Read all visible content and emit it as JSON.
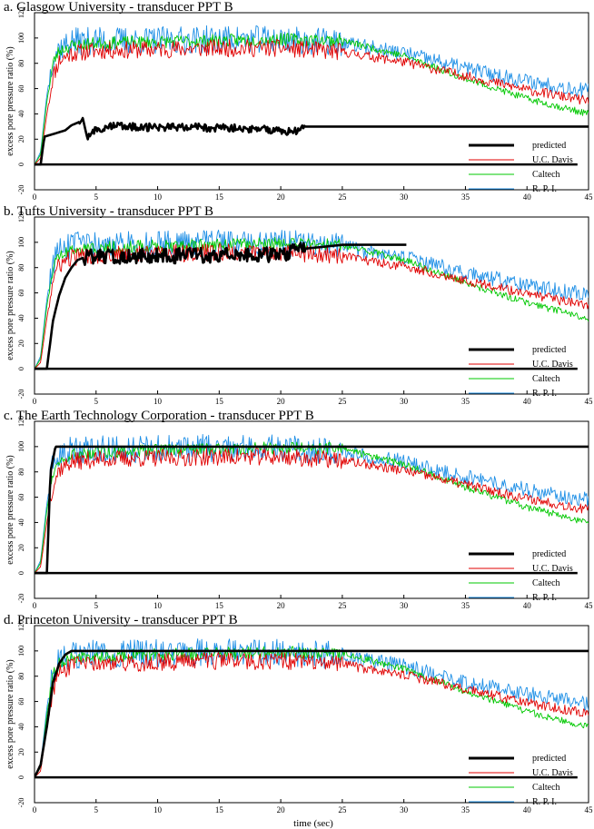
{
  "figure": {
    "xlabel": "time (sec)",
    "ylabel": "excess pore pressure ratio  (%)"
  },
  "colors": {
    "predicted": "#000000",
    "uc_davis": "#e00000",
    "caltech": "#00c800",
    "rpi": "#1e8fe6"
  },
  "chart_data": [
    {
      "type": "line",
      "title": "a. Glasgow University - transducer PPT B",
      "xlabel": "time (sec)",
      "ylabel": "excess pore pressure ratio  (%)",
      "xlim": [
        0,
        45
      ],
      "ylim": [
        -20,
        120
      ],
      "xticks": [
        0,
        5,
        10,
        15,
        20,
        25,
        30,
        35,
        40,
        45
      ],
      "yticks": [
        -20,
        0,
        20,
        40,
        60,
        80,
        100,
        120
      ],
      "legend": "bottom-right",
      "legend_entries": [
        "predicted",
        "U.C. Davis",
        "Caltech",
        "R. P. I."
      ],
      "series": [
        {
          "name": "predicted",
          "color": "#000000",
          "x": [
            0,
            0.5,
            0.8,
            1.5,
            2.5,
            3.0,
            3.5,
            4.0,
            4.2,
            5,
            6,
            8,
            10,
            12,
            14,
            16,
            18,
            20,
            21,
            21.5,
            22,
            30,
            35,
            45
          ],
          "y": [
            0,
            0,
            22,
            24,
            27,
            31,
            33,
            36,
            22,
            27,
            30,
            30,
            29,
            30,
            29,
            29,
            28,
            27,
            26,
            27,
            30,
            30,
            30,
            30
          ]
        },
        {
          "name": "U.C. Davis",
          "color": "#e00000",
          "x": [
            0,
            0.5,
            1,
            1.5,
            2,
            3,
            5,
            10,
            15,
            20,
            25,
            30,
            35,
            40,
            45
          ],
          "y": [
            0,
            5,
            40,
            70,
            82,
            88,
            90,
            91,
            92,
            92,
            89,
            81,
            70,
            59,
            50
          ]
        },
        {
          "name": "Caltech",
          "color": "#00c800",
          "x": [
            0,
            0.5,
            1,
            1.5,
            2,
            3,
            5,
            10,
            15,
            20,
            25,
            30,
            35,
            40,
            45
          ],
          "y": [
            0,
            8,
            50,
            80,
            90,
            94,
            96,
            97,
            98,
            99,
            98,
            86,
            68,
            52,
            40
          ]
        },
        {
          "name": "R. P. I.",
          "color": "#1e8fe6",
          "x": [
            0,
            0.5,
            1,
            1.5,
            2,
            3,
            5,
            10,
            15,
            20,
            25,
            30,
            35,
            40,
            45
          ],
          "y": [
            0,
            10,
            55,
            85,
            92,
            97,
            98,
            98,
            99,
            99,
            96,
            88,
            76,
            66,
            58
          ]
        }
      ]
    },
    {
      "type": "line",
      "title": "b. Tufts University - transducer PPT B",
      "xlabel": "time (sec)",
      "ylabel": "excess pore pressure ratio  (%)",
      "xlim": [
        0,
        45
      ],
      "ylim": [
        -20,
        120
      ],
      "xticks": [
        0,
        5,
        10,
        15,
        20,
        25,
        30,
        35,
        40,
        45
      ],
      "yticks": [
        -20,
        0,
        20,
        40,
        60,
        80,
        100,
        120
      ],
      "legend": "bottom-right",
      "legend_entries": [
        "predicted",
        "U.C. Davis",
        "Caltech",
        "R. P. I."
      ],
      "series": [
        {
          "name": "predicted",
          "color": "#000000",
          "x": [
            0,
            1.0,
            1.2,
            1.5,
            2.0,
            2.5,
            3.0,
            3.5,
            4.0,
            5,
            10,
            15,
            20,
            22,
            25,
            30.2
          ],
          "y": [
            0,
            0,
            15,
            38,
            58,
            72,
            80,
            86,
            88,
            89,
            89,
            90,
            90,
            95,
            98,
            98
          ]
        },
        {
          "name": "U.C. Davis",
          "color": "#e00000",
          "x": [
            0,
            0.5,
            1,
            1.5,
            2,
            3,
            5,
            10,
            15,
            20,
            25,
            30,
            35,
            40,
            45
          ],
          "y": [
            0,
            5,
            40,
            70,
            82,
            88,
            90,
            91,
            92,
            92,
            89,
            81,
            70,
            59,
            50
          ]
        },
        {
          "name": "Caltech",
          "color": "#00c800",
          "x": [
            0,
            0.5,
            1,
            1.5,
            2,
            3,
            5,
            10,
            15,
            20,
            25,
            30,
            35,
            40,
            45
          ],
          "y": [
            0,
            8,
            50,
            80,
            90,
            94,
            96,
            97,
            98,
            99,
            98,
            86,
            68,
            52,
            40
          ]
        },
        {
          "name": "R. P. I.",
          "color": "#1e8fe6",
          "x": [
            0,
            0.5,
            1,
            1.5,
            2,
            3,
            5,
            10,
            15,
            20,
            25,
            30,
            35,
            40,
            45
          ],
          "y": [
            0,
            10,
            55,
            85,
            92,
            97,
            98,
            98,
            99,
            99,
            96,
            88,
            76,
            66,
            58
          ]
        }
      ]
    },
    {
      "type": "line",
      "title": "c. The Earth Technology Corporation - transducer PPT B",
      "xlabel": "time (sec)",
      "ylabel": "excess pore pressure ratio  (%)",
      "xlim": [
        0,
        45
      ],
      "ylim": [
        -20,
        120
      ],
      "xticks": [
        0,
        5,
        10,
        15,
        20,
        25,
        30,
        35,
        40,
        45
      ],
      "yticks": [
        -20,
        0,
        20,
        40,
        60,
        80,
        100,
        120
      ],
      "legend": "bottom-right",
      "legend_entries": [
        "predicted",
        "U.C. Davis",
        "Caltech",
        "R. P. I."
      ],
      "series": [
        {
          "name": "predicted",
          "color": "#000000",
          "x": [
            0,
            1.0,
            1.3,
            1.7,
            45
          ],
          "y": [
            0,
            0,
            80,
            100,
            100
          ]
        },
        {
          "name": "U.C. Davis",
          "color": "#e00000",
          "x": [
            0,
            0.5,
            1,
            1.5,
            2,
            3,
            5,
            10,
            15,
            20,
            25,
            30,
            35,
            40,
            45
          ],
          "y": [
            0,
            5,
            40,
            70,
            82,
            88,
            90,
            91,
            92,
            92,
            89,
            81,
            70,
            59,
            50
          ]
        },
        {
          "name": "Caltech",
          "color": "#00c800",
          "x": [
            0,
            0.5,
            1,
            1.5,
            2,
            3,
            5,
            10,
            15,
            20,
            25,
            30,
            35,
            40,
            45
          ],
          "y": [
            0,
            8,
            50,
            80,
            90,
            94,
            96,
            97,
            98,
            99,
            98,
            86,
            68,
            52,
            40
          ]
        },
        {
          "name": "R. P. I.",
          "color": "#1e8fe6",
          "x": [
            0,
            0.5,
            1,
            1.5,
            2,
            3,
            5,
            10,
            15,
            20,
            25,
            30,
            35,
            40,
            45
          ],
          "y": [
            0,
            10,
            55,
            85,
            92,
            97,
            98,
            98,
            99,
            99,
            96,
            88,
            76,
            66,
            58
          ]
        }
      ]
    },
    {
      "type": "line",
      "title": "d. Princeton University - transducer PPT B",
      "xlabel": "time (sec)",
      "ylabel": "excess pore pressure ratio  (%)",
      "xlim": [
        0,
        45
      ],
      "ylim": [
        -20,
        120
      ],
      "xticks": [
        0,
        5,
        10,
        15,
        20,
        25,
        30,
        35,
        40,
        45
      ],
      "yticks": [
        -20,
        0,
        20,
        40,
        60,
        80,
        100,
        120
      ],
      "legend": "bottom-right",
      "legend_entries": [
        "predicted",
        "U.C. Davis",
        "Caltech",
        "R. P. I."
      ],
      "series": [
        {
          "name": "predicted",
          "color": "#000000",
          "x": [
            0,
            0.5,
            1.0,
            1.5,
            2.0,
            2.5,
            3.0,
            45
          ],
          "y": [
            0,
            10,
            40,
            75,
            90,
            97,
            100,
            100
          ]
        },
        {
          "name": "U.C. Davis",
          "color": "#e00000",
          "x": [
            0,
            0.5,
            1,
            1.5,
            2,
            3,
            5,
            10,
            15,
            20,
            25,
            30,
            35,
            40,
            45
          ],
          "y": [
            0,
            5,
            40,
            70,
            82,
            88,
            90,
            91,
            92,
            92,
            89,
            81,
            70,
            59,
            50
          ]
        },
        {
          "name": "Caltech",
          "color": "#00c800",
          "x": [
            0,
            0.5,
            1,
            1.5,
            2,
            3,
            5,
            10,
            15,
            20,
            25,
            30,
            35,
            40,
            45
          ],
          "y": [
            0,
            8,
            50,
            80,
            90,
            94,
            96,
            97,
            98,
            99,
            98,
            86,
            68,
            52,
            40
          ]
        },
        {
          "name": "R. P. I.",
          "color": "#1e8fe6",
          "x": [
            0,
            0.5,
            1,
            1.5,
            2,
            3,
            5,
            10,
            15,
            20,
            25,
            30,
            35,
            40,
            45
          ],
          "y": [
            0,
            10,
            55,
            85,
            92,
            97,
            98,
            98,
            99,
            99,
            96,
            88,
            76,
            66,
            58
          ]
        }
      ]
    }
  ]
}
